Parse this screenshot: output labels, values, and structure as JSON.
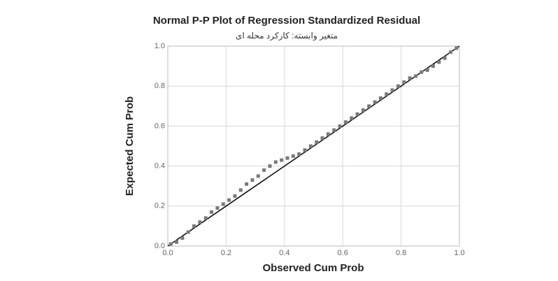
{
  "chart_data": {
    "type": "scatter",
    "title": "Normal P-P Plot of Regression Standardized Residual",
    "subtitle": "متغير وابسته: كاركرد محله اى",
    "x_label": "Observed Cum Prob",
    "y_label": "Expected Cum Prob",
    "xlim": [
      0,
      1
    ],
    "ylim": [
      0,
      1
    ],
    "xticks": [
      {
        "value": 0,
        "label": "0.0"
      },
      0.2,
      0.4,
      0.6,
      0.8,
      {
        "value": 1,
        "label": "1.0"
      }
    ],
    "yticks": [
      {
        "value": 0,
        "label": "0.0"
      },
      0.2,
      0.4,
      0.6,
      0.8,
      {
        "value": 1,
        "label": "1.0"
      }
    ],
    "grid": true,
    "color": "#7a7a7a",
    "x": [
      0.01,
      0.03,
      0.05,
      0.07,
      0.09,
      0.11,
      0.13,
      0.15,
      0.17,
      0.19,
      0.21,
      0.23,
      0.25,
      0.27,
      0.29,
      0.31,
      0.33,
      0.35,
      0.37,
      0.39,
      0.41,
      0.43,
      0.45,
      0.47,
      0.49,
      0.51,
      0.53,
      0.55,
      0.57,
      0.59,
      0.61,
      0.63,
      0.65,
      0.67,
      0.69,
      0.71,
      0.73,
      0.75,
      0.77,
      0.79,
      0.81,
      0.83,
      0.85,
      0.87,
      0.89,
      0.91,
      0.93,
      0.95,
      0.97,
      0.99
    ],
    "y": [
      0.01,
      0.02,
      0.04,
      0.07,
      0.1,
      0.12,
      0.14,
      0.17,
      0.19,
      0.21,
      0.23,
      0.25,
      0.28,
      0.31,
      0.33,
      0.35,
      0.38,
      0.4,
      0.42,
      0.43,
      0.44,
      0.45,
      0.46,
      0.48,
      0.5,
      0.52,
      0.54,
      0.56,
      0.58,
      0.6,
      0.62,
      0.64,
      0.66,
      0.68,
      0.7,
      0.72,
      0.74,
      0.76,
      0.78,
      0.8,
      0.82,
      0.84,
      0.85,
      0.87,
      0.88,
      0.9,
      0.92,
      0.94,
      0.97,
      0.99
    ]
  }
}
